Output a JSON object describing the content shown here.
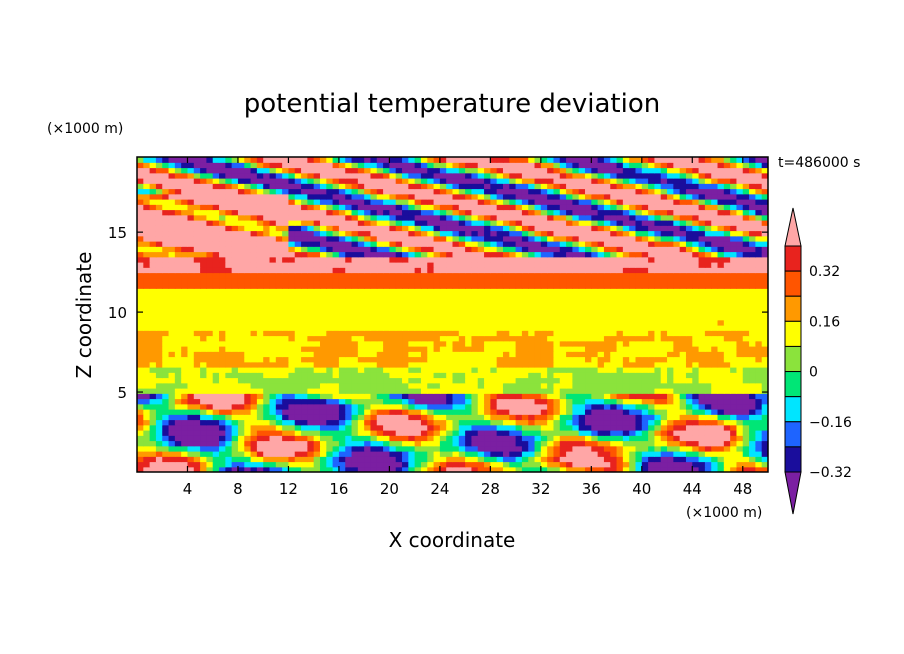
{
  "chart_data": {
    "type": "heatmap",
    "title": "potential temperature deviation",
    "xlabel": "X coordinate",
    "ylabel": "Z coordinate",
    "x_unit": "(×1000 m)",
    "y_unit": "(×1000 m)",
    "time_label": "t=486000 s",
    "xlim": [
      0,
      50
    ],
    "ylim": [
      0,
      19.7
    ],
    "x_ticks": [
      4,
      8,
      12,
      16,
      20,
      24,
      28,
      32,
      36,
      40,
      44,
      48
    ],
    "y_ticks": [
      5,
      10,
      15
    ],
    "colorbar": {
      "levels": [
        -0.4,
        -0.32,
        -0.24,
        -0.16,
        -0.08,
        0,
        0.08,
        0.16,
        0.24,
        0.32,
        0.4
      ],
      "labeled": [
        "0.32",
        "0.16",
        "0",
        "−0.16",
        "−0.32"
      ],
      "colors": [
        "#7B1FA2",
        "#1A0D9C",
        "#1E64FF",
        "#00E5FF",
        "#00E676",
        "#8BE33C",
        "#FFFF00",
        "#FF9900",
        "#FF5500",
        "#E8231E",
        "#FFA6A6"
      ],
      "extend": "both"
    },
    "layers": [
      {
        "z": [
          0,
          5
        ],
        "value": -0.1,
        "note": "turbulent lower layer, mixed ±0.4"
      },
      {
        "z": [
          5,
          6.5
        ],
        "value": 0.02
      },
      {
        "z": [
          6.5,
          9
        ],
        "value": 0.08
      },
      {
        "z": [
          9,
          11.5
        ],
        "value": 0.06
      },
      {
        "z": [
          11.5,
          12.5
        ],
        "value": 0.2
      },
      {
        "z": [
          12.5,
          13.5
        ],
        "value": 0.36
      },
      {
        "z": [
          13.5,
          19.7
        ],
        "value": 0.0,
        "note": "patchy: pink > 0.4 and purple < -0.4"
      }
    ]
  }
}
